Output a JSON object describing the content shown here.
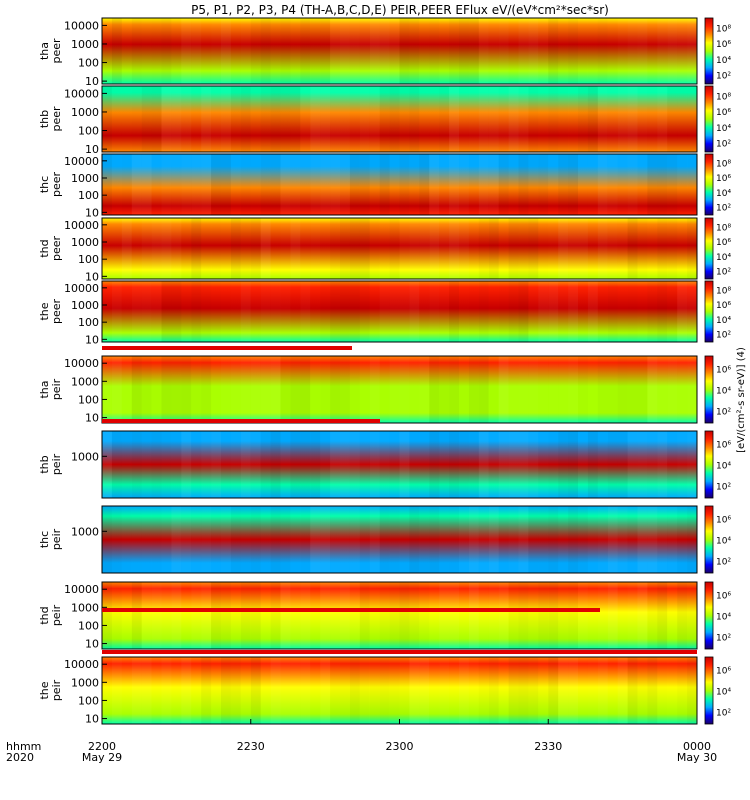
{
  "chart_data": {
    "type": "heatmap",
    "title": "P5, P1, P2, P3, P4 (TH-A,B,C,D,E) PEIR,PEER EFlux eV/(eV*cm²*sec*sr)",
    "xlabel_row1": "hhmm",
    "xlabel_row2": "2020",
    "x_ticks": [
      "2200",
      "2230",
      "2300",
      "2330",
      "0000"
    ],
    "x_dates": [
      "May 29",
      "",
      "",
      "",
      "May 30"
    ],
    "colorbar_label": "[eV/(cm²-s sr-eV)] (4)",
    "colormap": [
      "#1a0066",
      "#0000ff",
      "#00aaff",
      "#00ffaa",
      "#aaff00",
      "#ffff00",
      "#ff8800",
      "#ff2200",
      "#c80000"
    ],
    "panels": [
      {
        "label_line1": "tha",
        "label_line2": "peer",
        "y_ticks": [
          "10",
          "100",
          "1000",
          "10000"
        ],
        "y_range": [
          7,
          25000
        ],
        "colorbar_ticks": [
          "10²",
          "10⁴",
          "10⁶",
          "10⁸"
        ],
        "bands": [
          {
            "y": 0.2,
            "level": 0.55
          },
          {
            "y": 0.6,
            "level": 0.9
          },
          {
            "y": 0.9,
            "level": 0.7
          }
        ]
      },
      {
        "label_line1": "thb",
        "label_line2": "peer",
        "y_ticks": [
          "10",
          "100",
          "1000",
          "10000"
        ],
        "y_range": [
          7,
          25000
        ],
        "colorbar_ticks": [
          "10²",
          "10⁴",
          "10⁶",
          "10⁸"
        ],
        "bands": [
          {
            "y": 0.25,
            "level": 0.95
          },
          {
            "y": 0.6,
            "level": 0.7
          },
          {
            "y": 0.9,
            "level": 0.4
          }
        ]
      },
      {
        "label_line1": "thc",
        "label_line2": "peer",
        "y_ticks": [
          "10",
          "100",
          "1000",
          "10000"
        ],
        "y_range": [
          7,
          25000
        ],
        "colorbar_ticks": [
          "10²",
          "10⁴",
          "10⁶",
          "10⁸"
        ],
        "bands": [
          {
            "y": 0.15,
            "level": 0.98
          },
          {
            "y": 0.45,
            "level": 0.75
          },
          {
            "y": 0.8,
            "level": 0.3
          }
        ]
      },
      {
        "label_line1": "thd",
        "label_line2": "peer",
        "y_ticks": [
          "10",
          "100",
          "1000",
          "10000"
        ],
        "y_range": [
          7,
          25000
        ],
        "colorbar_ticks": [
          "10²",
          "10⁴",
          "10⁶",
          "10⁸"
        ],
        "bands": [
          {
            "y": 0.15,
            "level": 0.6
          },
          {
            "y": 0.55,
            "level": 0.92
          },
          {
            "y": 0.9,
            "level": 0.75
          }
        ]
      },
      {
        "label_line1": "the",
        "label_line2": "peer",
        "y_ticks": [
          "10",
          "100",
          "1000",
          "10000"
        ],
        "y_range": [
          7,
          25000
        ],
        "colorbar_ticks": [
          "10²",
          "10⁴",
          "10⁶",
          "10⁸"
        ],
        "bands": [
          {
            "y": 0.15,
            "level": 0.55
          },
          {
            "y": 0.55,
            "level": 0.92
          },
          {
            "y": 0.9,
            "level": 0.8
          }
        ]
      },
      {
        "label_line1": "tha",
        "label_line2": "peir",
        "y_ticks": [
          "10",
          "100",
          "1000",
          "10000"
        ],
        "y_range": [
          5,
          25000
        ],
        "colorbar_ticks": [
          "10²",
          "10⁴",
          "10⁶"
        ],
        "bands": [
          {
            "y": 0.15,
            "level": 0.45
          },
          {
            "y": 0.55,
            "level": 0.55
          },
          {
            "y": 0.9,
            "level": 0.82
          }
        ]
      },
      {
        "label_line1": "thb",
        "label_line2": "peir",
        "y_ticks": [
          "1000"
        ],
        "y_range": [
          5,
          25000
        ],
        "colorbar_ticks": [
          "10²",
          "10⁴",
          "10⁶"
        ],
        "bands": [
          {
            "y": 0.2,
            "level": 0.35
          },
          {
            "y": 0.5,
            "level": 0.95
          },
          {
            "y": 0.85,
            "level": 0.3
          }
        ]
      },
      {
        "label_line1": "thc",
        "label_line2": "peir",
        "y_ticks": [
          "1000"
        ],
        "y_range": [
          5,
          25000
        ],
        "colorbar_ticks": [
          "10²",
          "10⁴",
          "10⁶"
        ],
        "bands": [
          {
            "y": 0.15,
            "level": 0.3
          },
          {
            "y": 0.5,
            "level": 0.92
          },
          {
            "y": 0.85,
            "level": 0.35
          }
        ]
      },
      {
        "label_line1": "thd",
        "label_line2": "peir",
        "y_ticks": [
          "10",
          "100",
          "1000",
          "10000"
        ],
        "y_range": [
          5,
          25000
        ],
        "colorbar_ticks": [
          "10²",
          "10⁴",
          "10⁶"
        ],
        "bands": [
          {
            "y": 0.15,
            "level": 0.45
          },
          {
            "y": 0.55,
            "level": 0.58
          },
          {
            "y": 0.9,
            "level": 0.82
          }
        ]
      },
      {
        "label_line1": "the",
        "label_line2": "peir",
        "y_ticks": [
          "10",
          "100",
          "1000",
          "10000"
        ],
        "y_range": [
          5,
          25000
        ],
        "colorbar_ticks": [
          "10²",
          "10⁴",
          "10⁶"
        ],
        "bands": [
          {
            "y": 0.15,
            "level": 0.5
          },
          {
            "y": 0.55,
            "level": 0.62
          },
          {
            "y": 0.9,
            "level": 0.85
          }
        ]
      }
    ]
  }
}
